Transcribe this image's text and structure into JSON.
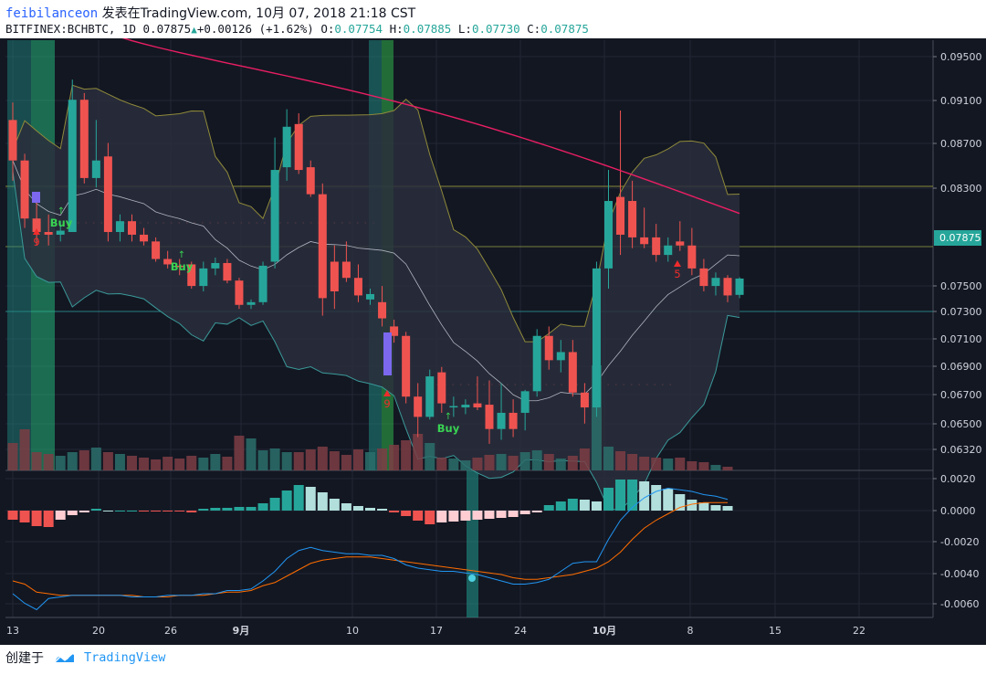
{
  "header": {
    "user": "feibilanceon",
    "published": "发表在TradingView.com, 10月 07, 2018 21:18 CST",
    "symbol": "BITFINEX:BCHBTC, 1D",
    "last": "0.07875",
    "change": "+0.00126 (+1.62%)",
    "o_label": "O:",
    "o": "0.07754",
    "h_label": "H:",
    "h": "0.07885",
    "l_label": "L:",
    "l": "0.07730",
    "c_label": "C:",
    "c": "0.07875"
  },
  "footer": {
    "created": "创建于",
    "brand": "TradingView"
  },
  "colors": {
    "up": "#26a69a",
    "down": "#ef5350",
    "background": "#131722",
    "macd": "#2196f3",
    "signal": "#ff6d00",
    "ma": "#e91e63"
  },
  "chart_data": {
    "type": "candlestick",
    "price_axis": {
      "ticks": [
        "0.09500",
        "0.09100",
        "0.08700",
        "0.08300",
        "0.07500",
        "0.07300",
        "0.07100",
        "0.06900",
        "0.06700",
        "0.06500",
        "0.06320"
      ],
      "last_price_label": "0.07875"
    },
    "macd_axis": {
      "ticks": [
        "0.0020",
        "0.0000",
        "-0.0020",
        "-0.0040",
        "-0.0060"
      ]
    },
    "time_axis": [
      "13",
      "20",
      "26",
      "9月",
      "10",
      "17",
      "24",
      "10月",
      "8",
      "15",
      "22"
    ],
    "signals": [
      {
        "label": "Buy",
        "type": "buy"
      },
      {
        "label": "Buy",
        "type": "buy"
      },
      {
        "label": "Buy",
        "type": "buy"
      },
      {
        "label": "9",
        "type": "count"
      },
      {
        "label": "9",
        "type": "count"
      },
      {
        "label": "5",
        "type": "count"
      }
    ],
    "candles": [
      {
        "o": 0.0905,
        "h": 0.0918,
        "l": 0.086,
        "c": 0.0875
      },
      {
        "o": 0.0875,
        "h": 0.088,
        "l": 0.0825,
        "c": 0.0832
      },
      {
        "o": 0.0832,
        "h": 0.0846,
        "l": 0.0812,
        "c": 0.0822
      },
      {
        "o": 0.0822,
        "h": 0.0835,
        "l": 0.0812,
        "c": 0.082
      },
      {
        "o": 0.082,
        "h": 0.083,
        "l": 0.0815,
        "c": 0.0823
      },
      {
        "o": 0.0822,
        "h": 0.0935,
        "l": 0.0822,
        "c": 0.092
      },
      {
        "o": 0.092,
        "h": 0.0925,
        "l": 0.0858,
        "c": 0.0862
      },
      {
        "o": 0.0862,
        "h": 0.0905,
        "l": 0.0855,
        "c": 0.0875
      },
      {
        "o": 0.0878,
        "h": 0.0888,
        "l": 0.0815,
        "c": 0.0822
      },
      {
        "o": 0.0822,
        "h": 0.0835,
        "l": 0.0815,
        "c": 0.083
      },
      {
        "o": 0.083,
        "h": 0.0835,
        "l": 0.0815,
        "c": 0.082
      },
      {
        "o": 0.082,
        "h": 0.0825,
        "l": 0.0812,
        "c": 0.0815
      },
      {
        "o": 0.0815,
        "h": 0.0818,
        "l": 0.08,
        "c": 0.0802
      },
      {
        "o": 0.0802,
        "h": 0.0808,
        "l": 0.0795,
        "c": 0.0798
      },
      {
        "o": 0.0797,
        "h": 0.0802,
        "l": 0.079,
        "c": 0.0796
      },
      {
        "o": 0.0798,
        "h": 0.08,
        "l": 0.078,
        "c": 0.0782
      },
      {
        "o": 0.0782,
        "h": 0.08,
        "l": 0.0778,
        "c": 0.0795
      },
      {
        "o": 0.0795,
        "h": 0.0803,
        "l": 0.079,
        "c": 0.0799
      },
      {
        "o": 0.0799,
        "h": 0.0802,
        "l": 0.0784,
        "c": 0.0786
      },
      {
        "o": 0.0786,
        "h": 0.0788,
        "l": 0.0765,
        "c": 0.0768
      },
      {
        "o": 0.0768,
        "h": 0.0772,
        "l": 0.0765,
        "c": 0.077
      },
      {
        "o": 0.077,
        "h": 0.08,
        "l": 0.0768,
        "c": 0.0797
      },
      {
        "o": 0.08,
        "h": 0.0892,
        "l": 0.0795,
        "c": 0.0868
      },
      {
        "o": 0.087,
        "h": 0.0913,
        "l": 0.086,
        "c": 0.09
      },
      {
        "o": 0.0902,
        "h": 0.091,
        "l": 0.0865,
        "c": 0.0868
      },
      {
        "o": 0.087,
        "h": 0.0875,
        "l": 0.0848,
        "c": 0.085
      },
      {
        "o": 0.085,
        "h": 0.0858,
        "l": 0.076,
        "c": 0.0773
      },
      {
        "o": 0.08,
        "h": 0.0812,
        "l": 0.0765,
        "c": 0.0778
      },
      {
        "o": 0.08,
        "h": 0.0815,
        "l": 0.0785,
        "c": 0.0788
      },
      {
        "o": 0.0788,
        "h": 0.0798,
        "l": 0.077,
        "c": 0.0775
      },
      {
        "o": 0.0772,
        "h": 0.078,
        "l": 0.0768,
        "c": 0.0776
      },
      {
        "o": 0.077,
        "h": 0.0782,
        "l": 0.0752,
        "c": 0.0758
      },
      {
        "o": 0.0752,
        "h": 0.0757,
        "l": 0.074,
        "c": 0.0745
      },
      {
        "o": 0.0745,
        "h": 0.0748,
        "l": 0.0695,
        "c": 0.07
      },
      {
        "o": 0.07,
        "h": 0.071,
        "l": 0.067,
        "c": 0.0685
      },
      {
        "o": 0.0685,
        "h": 0.072,
        "l": 0.0683,
        "c": 0.0715
      },
      {
        "o": 0.0718,
        "h": 0.0722,
        "l": 0.0688,
        "c": 0.0695
      },
      {
        "o": 0.0692,
        "h": 0.07,
        "l": 0.0685,
        "c": 0.0693
      },
      {
        "o": 0.0692,
        "h": 0.0698,
        "l": 0.0687,
        "c": 0.0694
      },
      {
        "o": 0.0695,
        "h": 0.0715,
        "l": 0.069,
        "c": 0.0692
      },
      {
        "o": 0.0694,
        "h": 0.0712,
        "l": 0.0665,
        "c": 0.0676
      },
      {
        "o": 0.0676,
        "h": 0.071,
        "l": 0.0668,
        "c": 0.0688
      },
      {
        "o": 0.0688,
        "h": 0.0698,
        "l": 0.067,
        "c": 0.0676
      },
      {
        "o": 0.0688,
        "h": 0.0705,
        "l": 0.0675,
        "c": 0.0704
      },
      {
        "o": 0.0704,
        "h": 0.075,
        "l": 0.07,
        "c": 0.0745
      },
      {
        "o": 0.0745,
        "h": 0.0752,
        "l": 0.072,
        "c": 0.0727
      },
      {
        "o": 0.0727,
        "h": 0.0742,
        "l": 0.0718,
        "c": 0.0733
      },
      {
        "o": 0.0733,
        "h": 0.0742,
        "l": 0.07,
        "c": 0.0703
      },
      {
        "o": 0.0703,
        "h": 0.071,
        "l": 0.068,
        "c": 0.0692
      },
      {
        "o": 0.0692,
        "h": 0.08,
        "l": 0.0685,
        "c": 0.0795
      },
      {
        "o": 0.0795,
        "h": 0.0868,
        "l": 0.078,
        "c": 0.0845
      },
      {
        "o": 0.0848,
        "h": 0.0912,
        "l": 0.0805,
        "c": 0.082
      },
      {
        "o": 0.0845,
        "h": 0.086,
        "l": 0.081,
        "c": 0.0818
      },
      {
        "o": 0.0818,
        "h": 0.084,
        "l": 0.081,
        "c": 0.0813
      },
      {
        "o": 0.0818,
        "h": 0.0828,
        "l": 0.08,
        "c": 0.0805
      },
      {
        "o": 0.0805,
        "h": 0.0818,
        "l": 0.08,
        "c": 0.0812
      },
      {
        "o": 0.0815,
        "h": 0.083,
        "l": 0.0808,
        "c": 0.0812
      },
      {
        "o": 0.0812,
        "h": 0.0825,
        "l": 0.079,
        "c": 0.0795
      },
      {
        "o": 0.0795,
        "h": 0.0802,
        "l": 0.0778,
        "c": 0.0782
      },
      {
        "o": 0.0782,
        "h": 0.0792,
        "l": 0.0775,
        "c": 0.0788
      },
      {
        "o": 0.0788,
        "h": 0.079,
        "l": 0.077,
        "c": 0.0775
      },
      {
        "o": 0.07754,
        "h": 0.07885,
        "l": 0.0773,
        "c": 0.07875
      }
    ]
  }
}
